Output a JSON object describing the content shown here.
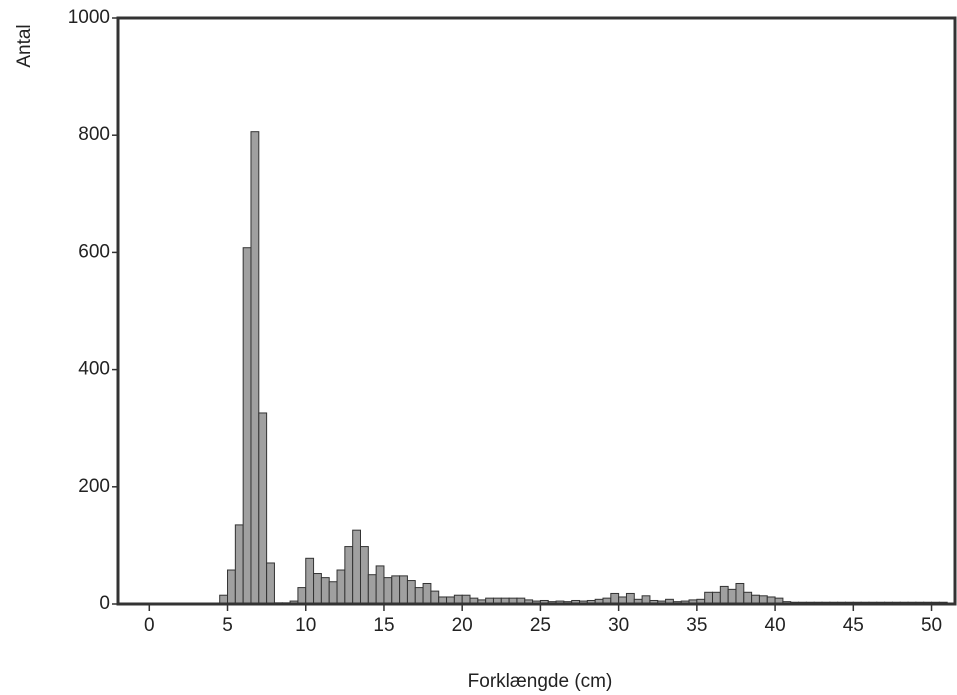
{
  "chart_data": {
    "type": "histogram",
    "x_label": "Forklængde (cm)",
    "y_label": "Antal",
    "bins": [
      0,
      0.5,
      1,
      1.5,
      2,
      2.5,
      3,
      3.5,
      4,
      4.5,
      5,
      5.5,
      6,
      6.5,
      7,
      7.5,
      8,
      8.5,
      9,
      9.5,
      10,
      10.5,
      11,
      11.5,
      12,
      12.5,
      13,
      13.5,
      14,
      14.5,
      15,
      15.5,
      16,
      16.5,
      17,
      17.5,
      18,
      18.5,
      19,
      19.5,
      20,
      20.5,
      21,
      21.5,
      22,
      22.5,
      23,
      23.5,
      24,
      24.5,
      25,
      25.5,
      26,
      26.5,
      27,
      27.5,
      28,
      28.5,
      29,
      29.5,
      30,
      30.5,
      31,
      31.5,
      32,
      32.5,
      33,
      33.5,
      34,
      34.5,
      35,
      35.5,
      36,
      36.5,
      37,
      37.5,
      38,
      38.5,
      39,
      39.5,
      40,
      40.5,
      41,
      41.5,
      42,
      42.5,
      43,
      43.5,
      44,
      44.5,
      45,
      45.5,
      46,
      46.5,
      47,
      47.5,
      48,
      48.5,
      49,
      49.5,
      50,
      50.5,
      51
    ],
    "values": [
      1,
      1,
      1,
      1,
      1,
      1,
      1,
      1,
      1,
      15,
      58,
      135,
      608,
      806,
      326,
      70,
      2,
      2,
      5,
      28,
      78,
      52,
      45,
      38,
      58,
      98,
      126,
      98,
      50,
      65,
      45,
      48,
      48,
      40,
      28,
      35,
      22,
      12,
      12,
      15,
      15,
      10,
      7,
      10,
      10,
      10,
      10,
      10,
      7,
      5,
      6,
      4,
      5,
      4,
      6,
      5,
      6,
      8,
      10,
      18,
      12,
      18,
      8,
      14,
      6,
      5,
      8,
      4,
      5,
      7,
      8,
      20,
      20,
      30,
      25,
      35,
      20,
      15,
      14,
      12,
      10,
      4,
      3,
      3,
      3,
      3,
      3,
      3,
      3,
      3,
      3,
      3,
      3,
      3,
      3,
      3,
      3,
      3,
      3,
      3,
      3,
      3
    ],
    "color": "#a0a0a0",
    "xlim": [
      -2,
      51.5
    ],
    "xticks": [
      0,
      5,
      10,
      15,
      20,
      25,
      30,
      35,
      40,
      45,
      50
    ],
    "ylim": [
      0,
      1000
    ],
    "yticks": [
      0,
      200,
      400,
      600,
      800,
      1000
    ]
  }
}
